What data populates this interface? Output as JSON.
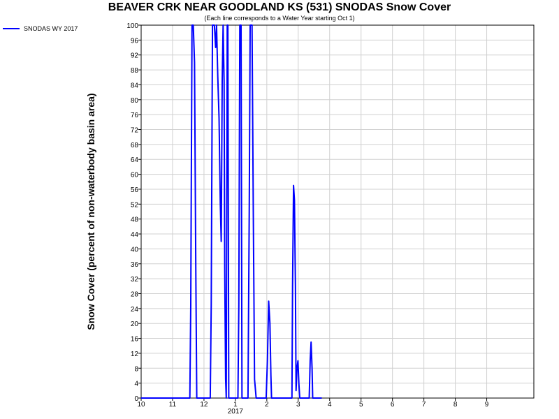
{
  "chart_data": {
    "type": "line",
    "title": "BEAVER CRK NEAR GOODLAND KS (531) SNODAS Snow Cover",
    "subtitle": "(Each line corresponds to a Water Year starting Oct 1)",
    "ylabel": "Snow Cover (percent of non-waterbody basin area)",
    "xlabel": "",
    "ylim": [
      0,
      100
    ],
    "xlim": [
      0,
      12.5
    ],
    "y_ticks": [
      0,
      4,
      8,
      12,
      16,
      20,
      24,
      28,
      32,
      36,
      40,
      44,
      48,
      52,
      56,
      60,
      64,
      68,
      72,
      76,
      80,
      84,
      88,
      92,
      96,
      100
    ],
    "x_ticks": [
      {
        "x": 0,
        "label": "10"
      },
      {
        "x": 1,
        "label": "11"
      },
      {
        "x": 2,
        "label": "12"
      },
      {
        "x": 3,
        "label": "1"
      },
      {
        "x": 4,
        "label": "2"
      },
      {
        "x": 5,
        "label": "3"
      },
      {
        "x": 6,
        "label": "4"
      },
      {
        "x": 7,
        "label": "5"
      },
      {
        "x": 8,
        "label": "6"
      },
      {
        "x": 9,
        "label": "7"
      },
      {
        "x": 10,
        "label": "8"
      },
      {
        "x": 11,
        "label": "9"
      }
    ],
    "year_label": {
      "x": 3,
      "label": "2017"
    },
    "grid": true,
    "legend_position": "top-left",
    "series": [
      {
        "name": "SNODAS WY 2017",
        "color": "#0000ff",
        "points": [
          [
            0,
            0
          ],
          [
            1.55,
            0
          ],
          [
            1.58,
            25
          ],
          [
            1.62,
            100
          ],
          [
            1.66,
            100
          ],
          [
            1.7,
            90
          ],
          [
            1.74,
            35
          ],
          [
            1.77,
            0
          ],
          [
            2.2,
            0
          ],
          [
            2.23,
            25
          ],
          [
            2.27,
            100
          ],
          [
            2.33,
            100
          ],
          [
            2.37,
            94
          ],
          [
            2.4,
            100
          ],
          [
            2.44,
            86
          ],
          [
            2.48,
            75
          ],
          [
            2.52,
            52
          ],
          [
            2.55,
            42
          ],
          [
            2.58,
            85
          ],
          [
            2.61,
            100
          ],
          [
            2.64,
            85
          ],
          [
            2.66,
            35
          ],
          [
            2.69,
            5
          ],
          [
            2.71,
            0
          ],
          [
            2.74,
            100
          ],
          [
            2.76,
            100
          ],
          [
            2.79,
            0
          ],
          [
            3.08,
            0
          ],
          [
            3.11,
            25
          ],
          [
            3.14,
            100
          ],
          [
            3.18,
            100
          ],
          [
            3.21,
            0
          ],
          [
            3.4,
            0
          ],
          [
            3.44,
            50
          ],
          [
            3.47,
            100
          ],
          [
            3.53,
            100
          ],
          [
            3.57,
            50
          ],
          [
            3.61,
            5
          ],
          [
            3.66,
            0
          ],
          [
            3.98,
            0
          ],
          [
            4.02,
            10
          ],
          [
            4.06,
            26
          ],
          [
            4.1,
            20
          ],
          [
            4.13,
            6
          ],
          [
            4.15,
            0
          ],
          [
            4.8,
            0
          ],
          [
            4.82,
            30
          ],
          [
            4.85,
            57
          ],
          [
            4.88,
            53
          ],
          [
            4.91,
            30
          ],
          [
            4.93,
            2
          ],
          [
            4.96,
            8
          ],
          [
            4.99,
            10
          ],
          [
            5.02,
            4
          ],
          [
            5.05,
            0
          ],
          [
            5.35,
            0
          ],
          [
            5.38,
            10
          ],
          [
            5.41,
            15
          ],
          [
            5.44,
            8
          ],
          [
            5.46,
            0
          ],
          [
            5.75,
            0
          ]
        ]
      }
    ]
  }
}
